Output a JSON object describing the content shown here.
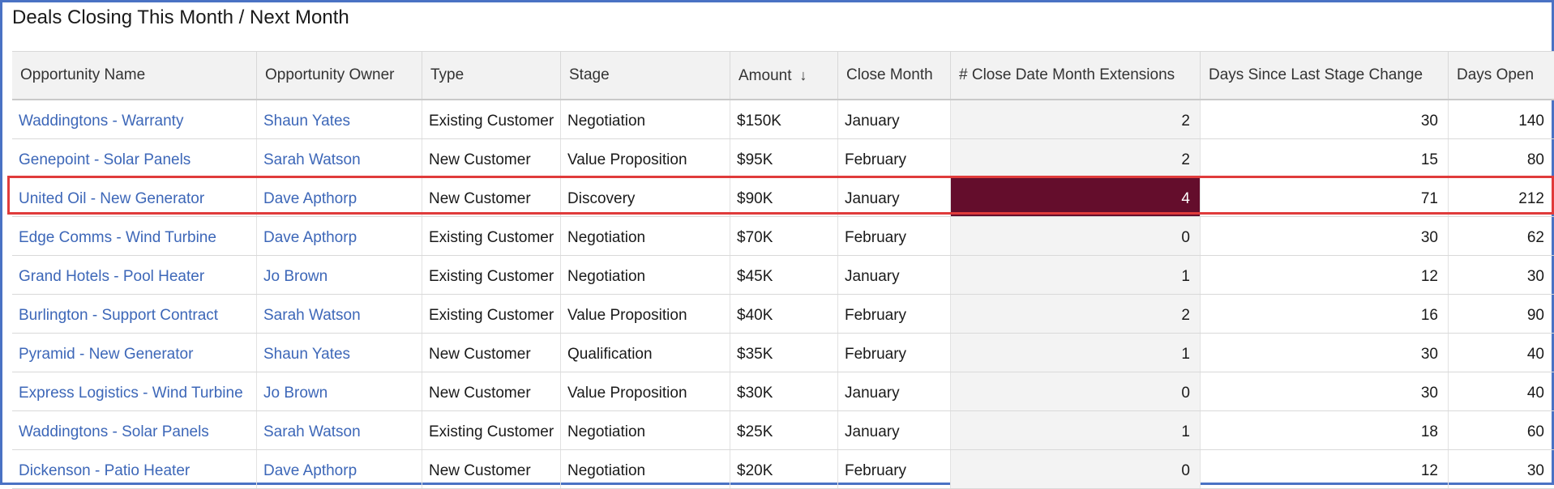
{
  "report": {
    "title": "Deals Closing This Month / Next Month",
    "sort_icon": "down-arrow-icon",
    "highlight_color": "#e03b3b",
    "hot_cell_color": "#640d2c",
    "link_color": "#3d67b8",
    "columns": [
      "Opportunity Name",
      "Opportunity Owner",
      "Type",
      "Stage",
      "Amount",
      "Close Month",
      "# Close Date Month Extensions",
      "Days Since Last Stage Change",
      "Days Open"
    ],
    "rows": [
      [
        "Waddingtons - Warranty",
        "Shaun Yates",
        "Existing Customer",
        "Negotiation",
        "$150K",
        "January",
        "2",
        "30",
        "140"
      ],
      [
        "Genepoint - Solar Panels",
        "Sarah Watson",
        "New Customer",
        "Value Proposition",
        "$95K",
        "February",
        "2",
        "15",
        "80"
      ],
      [
        "United Oil - New Generator",
        "Dave Apthorp",
        "New Customer",
        "Discovery",
        "$90K",
        "January",
        "4",
        "71",
        "212"
      ],
      [
        "Edge Comms - Wind Turbine",
        "Dave Apthorp",
        "Existing Customer",
        "Negotiation",
        "$70K",
        "February",
        "0",
        "30",
        "62"
      ],
      [
        "Grand Hotels - Pool Heater",
        "Jo Brown",
        "Existing Customer",
        "Negotiation",
        "$45K",
        "January",
        "1",
        "12",
        "30"
      ],
      [
        "Burlington - Support Contract",
        "Sarah Watson",
        "Existing Customer",
        "Value Proposition",
        "$40K",
        "February",
        "2",
        "16",
        "90"
      ],
      [
        "Pyramid - New Generator",
        "Shaun Yates",
        "New Customer",
        "Qualification",
        "$35K",
        "February",
        "1",
        "30",
        "40"
      ],
      [
        "Express Logistics - Wind Turbine",
        "Jo Brown",
        "New Customer",
        "Value Proposition",
        "$30K",
        "January",
        "0",
        "30",
        "40"
      ],
      [
        "Waddingtons - Solar Panels",
        "Sarah Watson",
        "Existing Customer",
        "Negotiation",
        "$25K",
        "January",
        "1",
        "18",
        "60"
      ],
      [
        "Dickenson - Patio Heater",
        "Dave Apthorp",
        "New Customer",
        "Negotiation",
        "$20K",
        "February",
        "0",
        "12",
        "30"
      ]
    ]
  }
}
